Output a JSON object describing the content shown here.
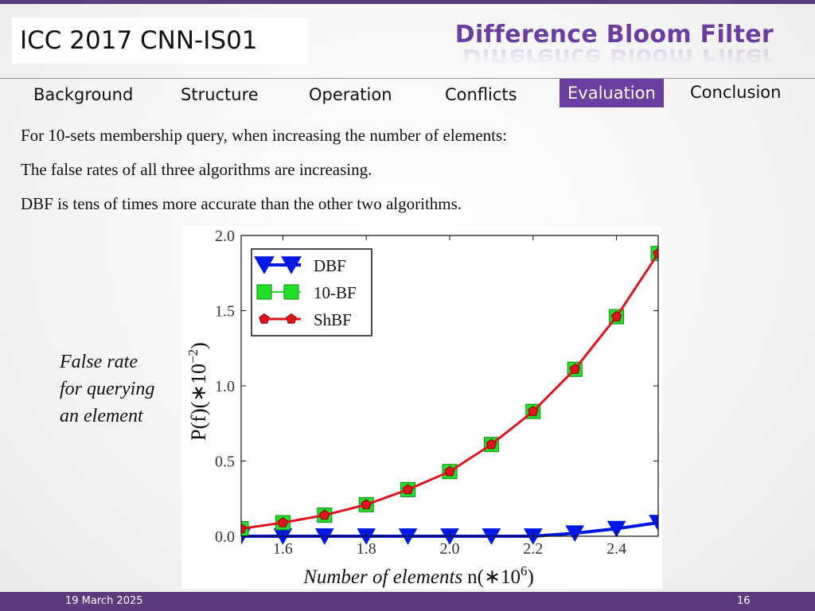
{
  "header": {
    "badge": "ICC 2017  CNN-IS01",
    "title": "Difference Bloom Filter"
  },
  "nav": {
    "items": [
      {
        "label": "Background",
        "active": false
      },
      {
        "label": "Structure",
        "active": false
      },
      {
        "label": "Operation",
        "active": false
      },
      {
        "label": "Conflicts",
        "active": false
      },
      {
        "label": "Evaluation",
        "active": true
      },
      {
        "label": "Conclusion",
        "active": false
      }
    ]
  },
  "body": {
    "lines": [
      "For 10-sets membership query, when increasing the number of elements:",
      "The false rates of all three algorithms are increasing.",
      "DBF is tens of times more accurate than the other two algorithms."
    ]
  },
  "side_label": {
    "line1": "False rate",
    "line2": "for querying",
    "line3": "an element"
  },
  "colors": {
    "accent": "#6a3ea0",
    "dbf": "#0018e6",
    "bf10": "#22e02a",
    "shbf_line": "#e0141e",
    "shbf_marker": "#e0141e"
  },
  "chart_data": {
    "type": "line",
    "ylabel": "P(f)(∗10",
    "ylabel_exp": "−2",
    "ylabel_close": ")",
    "xlabel_italic": "Number of elements",
    "xlabel_math": "n(∗10",
    "xlabel_exp": "6",
    "xlabel_close": ")",
    "xlim": [
      1.5,
      2.5
    ],
    "ylim": [
      0.0,
      2.0
    ],
    "xticks": [
      "1.6",
      "1.8",
      "2.0",
      "2.2",
      "2.4"
    ],
    "yticks": [
      "0.0",
      "0.5",
      "1.0",
      "1.5",
      "2.0"
    ],
    "legend_position": "top-left",
    "x": [
      1.5,
      1.6,
      1.7,
      1.8,
      1.9,
      2.0,
      2.1,
      2.2,
      2.3,
      2.4,
      2.5
    ],
    "series": [
      {
        "name": "DBF",
        "values": [
          0.0,
          0.0,
          0.0,
          0.0,
          0.0,
          0.0,
          0.0,
          0.0,
          0.02,
          0.05,
          0.09
        ]
      },
      {
        "name": "10-BF",
        "values": [
          0.05,
          0.09,
          0.14,
          0.21,
          0.31,
          0.43,
          0.61,
          0.83,
          1.11,
          1.46,
          1.88
        ]
      },
      {
        "name": "ShBF",
        "values": [
          0.05,
          0.09,
          0.14,
          0.21,
          0.31,
          0.43,
          0.61,
          0.83,
          1.11,
          1.46,
          1.88
        ]
      }
    ]
  },
  "footer": {
    "date": "19 March 2025",
    "page": "16"
  }
}
